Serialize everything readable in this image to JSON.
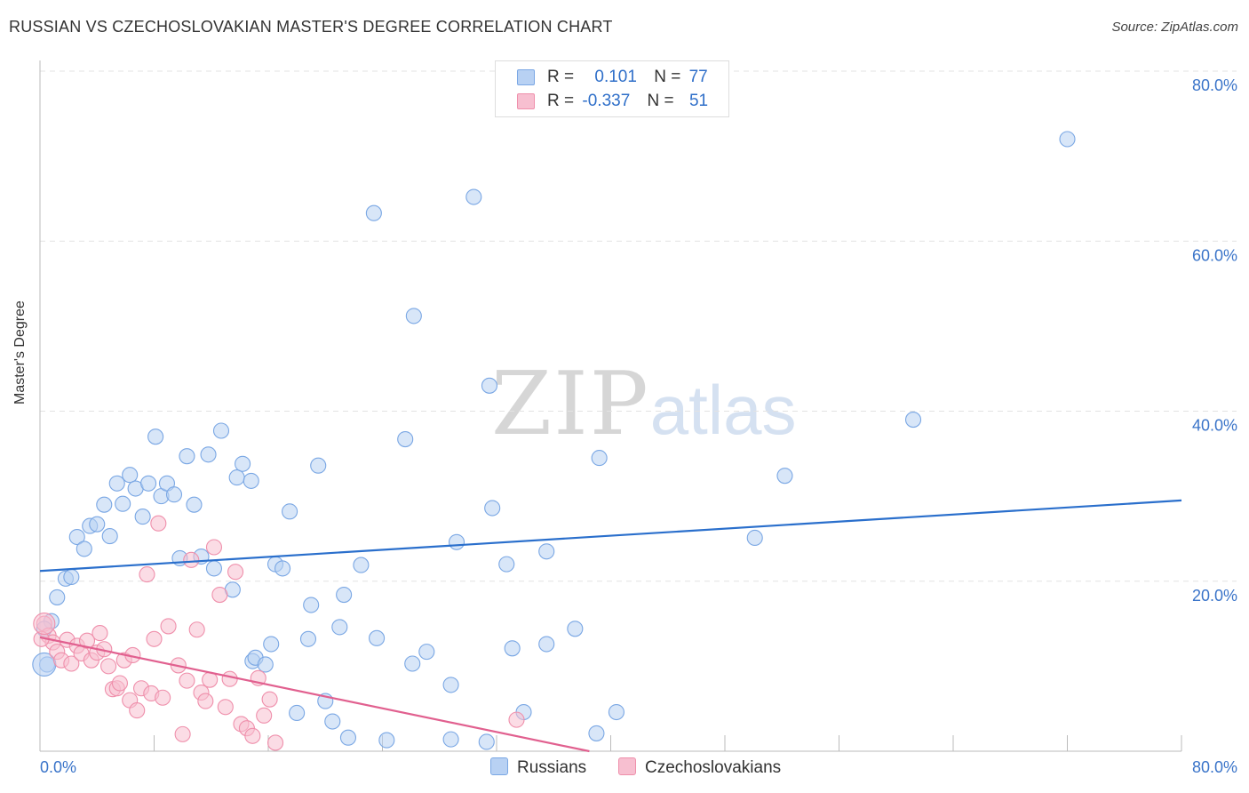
{
  "header": {
    "title": "RUSSIAN VS CZECHOSLOVAKIAN MASTER'S DEGREE CORRELATION CHART",
    "source": "Source: ZipAtlas.com"
  },
  "watermark": {
    "zip": "ZIP",
    "atlas": "atlas"
  },
  "legend": {
    "russians": {
      "r_label": "R =",
      "r_value": "0.101",
      "n_label": "N =",
      "n_value": "77"
    },
    "czechoslovakians": {
      "r_label": "R =",
      "r_value": "-0.337",
      "n_label": "N =",
      "n_value": "51"
    }
  },
  "bottom_legend": {
    "russians": "Russians",
    "czechoslovakians": "Czechoslovakians"
  },
  "colors": {
    "russians_fill": "#b8d1f3",
    "russians_stroke": "#7aa7e4",
    "russians_line": "#2a6fcc",
    "czech_fill": "#f7bfd0",
    "czech_stroke": "#ef8fab",
    "czech_line": "#e1608f",
    "tick": "#3a74c9",
    "grid": "#e3e3e3"
  },
  "chart_data": {
    "type": "scatter",
    "title": "RUSSIAN VS CZECHOSLOVAKIAN MASTER'S DEGREE CORRELATION CHART",
    "xlabel": "",
    "ylabel": "Master's Degree",
    "xlim": [
      0,
      80
    ],
    "ylim": [
      0,
      80
    ],
    "x_tick_labels": [
      "0.0%",
      "80.0%"
    ],
    "y_tick_labels": [
      "20.0%",
      "40.0%",
      "60.0%",
      "80.0%"
    ],
    "y_ticks": [
      20,
      40,
      60,
      80
    ],
    "grid": true,
    "series": [
      {
        "name": "Russians",
        "trend": {
          "x": [
            0,
            80
          ],
          "y": [
            21.2,
            29.5
          ]
        },
        "points": [
          [
            0.5,
            10.2
          ],
          [
            0.8,
            15.3
          ],
          [
            1.2,
            18.1
          ],
          [
            1.8,
            20.3
          ],
          [
            2.2,
            20.5
          ],
          [
            2.6,
            25.2
          ],
          [
            3.1,
            23.8
          ],
          [
            3.5,
            26.5
          ],
          [
            4.0,
            26.7
          ],
          [
            4.5,
            29.0
          ],
          [
            4.9,
            25.3
          ],
          [
            5.4,
            31.5
          ],
          [
            5.8,
            29.1
          ],
          [
            6.3,
            32.5
          ],
          [
            6.7,
            30.9
          ],
          [
            7.2,
            27.6
          ],
          [
            7.6,
            31.5
          ],
          [
            8.1,
            37.0
          ],
          [
            8.5,
            30.0
          ],
          [
            8.9,
            31.5
          ],
          [
            9.4,
            30.2
          ],
          [
            9.8,
            22.7
          ],
          [
            10.3,
            34.7
          ],
          [
            10.8,
            29.0
          ],
          [
            11.3,
            22.9
          ],
          [
            11.8,
            34.9
          ],
          [
            12.2,
            21.5
          ],
          [
            12.7,
            37.7
          ],
          [
            13.5,
            19.0
          ],
          [
            13.8,
            32.2
          ],
          [
            14.2,
            33.8
          ],
          [
            14.8,
            31.8
          ],
          [
            14.9,
            10.6
          ],
          [
            15.1,
            11.0
          ],
          [
            15.8,
            10.2
          ],
          [
            16.2,
            12.6
          ],
          [
            16.5,
            22.0
          ],
          [
            17.0,
            21.5
          ],
          [
            17.5,
            28.2
          ],
          [
            18.0,
            4.5
          ],
          [
            18.8,
            13.2
          ],
          [
            19.0,
            17.2
          ],
          [
            19.5,
            33.6
          ],
          [
            20.0,
            5.9
          ],
          [
            20.5,
            3.5
          ],
          [
            21.0,
            14.6
          ],
          [
            21.3,
            18.4
          ],
          [
            21.6,
            1.6
          ],
          [
            22.5,
            21.9
          ],
          [
            23.4,
            63.3
          ],
          [
            23.6,
            13.3
          ],
          [
            24.3,
            1.3
          ],
          [
            25.6,
            36.7
          ],
          [
            26.1,
            10.3
          ],
          [
            26.2,
            51.2
          ],
          [
            27.1,
            11.7
          ],
          [
            28.8,
            1.4
          ],
          [
            28.8,
            7.8
          ],
          [
            29.2,
            24.6
          ],
          [
            30.4,
            65.2
          ],
          [
            31.3,
            1.1
          ],
          [
            31.5,
            43.0
          ],
          [
            31.7,
            28.6
          ],
          [
            32.7,
            22.0
          ],
          [
            33.1,
            12.1
          ],
          [
            33.9,
            4.6
          ],
          [
            35.5,
            23.5
          ],
          [
            35.5,
            12.6
          ],
          [
            37.5,
            14.4
          ],
          [
            39.0,
            2.1
          ],
          [
            39.2,
            34.5
          ],
          [
            40.4,
            4.6
          ],
          [
            50.1,
            25.1
          ],
          [
            52.2,
            32.4
          ],
          [
            61.2,
            39.0
          ],
          [
            72.0,
            72.0
          ],
          [
            0.3,
            14.4
          ]
        ]
      },
      {
        "name": "Czechoslovakians",
        "trend": {
          "x": [
            0,
            38.5
          ],
          "y": [
            13.4,
            0
          ]
        },
        "points": [
          [
            0.3,
            15.0
          ],
          [
            0.6,
            13.6
          ],
          [
            0.9,
            12.8
          ],
          [
            1.2,
            11.7
          ],
          [
            1.5,
            10.7
          ],
          [
            1.9,
            13.1
          ],
          [
            2.2,
            10.3
          ],
          [
            2.6,
            12.4
          ],
          [
            2.9,
            11.5
          ],
          [
            3.3,
            13.0
          ],
          [
            3.6,
            10.7
          ],
          [
            4.0,
            11.6
          ],
          [
            4.2,
            13.9
          ],
          [
            4.5,
            12.0
          ],
          [
            4.8,
            10.0
          ],
          [
            5.1,
            7.3
          ],
          [
            5.4,
            7.4
          ],
          [
            5.6,
            8.0
          ],
          [
            5.9,
            10.7
          ],
          [
            6.3,
            6.0
          ],
          [
            6.5,
            11.3
          ],
          [
            6.8,
            4.8
          ],
          [
            7.1,
            7.4
          ],
          [
            7.5,
            20.8
          ],
          [
            7.8,
            6.8
          ],
          [
            8.0,
            13.2
          ],
          [
            8.3,
            26.8
          ],
          [
            8.6,
            6.3
          ],
          [
            9.0,
            14.7
          ],
          [
            9.7,
            10.1
          ],
          [
            10.0,
            2.0
          ],
          [
            10.3,
            8.3
          ],
          [
            10.6,
            22.5
          ],
          [
            11.0,
            14.3
          ],
          [
            11.3,
            6.9
          ],
          [
            11.6,
            5.9
          ],
          [
            11.9,
            8.4
          ],
          [
            12.2,
            24.0
          ],
          [
            12.6,
            18.4
          ],
          [
            13.0,
            5.2
          ],
          [
            13.3,
            8.5
          ],
          [
            13.7,
            21.1
          ],
          [
            14.1,
            3.2
          ],
          [
            14.5,
            2.7
          ],
          [
            14.9,
            1.8
          ],
          [
            15.3,
            8.6
          ],
          [
            15.7,
            4.2
          ],
          [
            16.1,
            6.1
          ],
          [
            16.5,
            1.0
          ],
          [
            33.4,
            3.7
          ],
          [
            0.1,
            13.2
          ]
        ]
      }
    ]
  }
}
